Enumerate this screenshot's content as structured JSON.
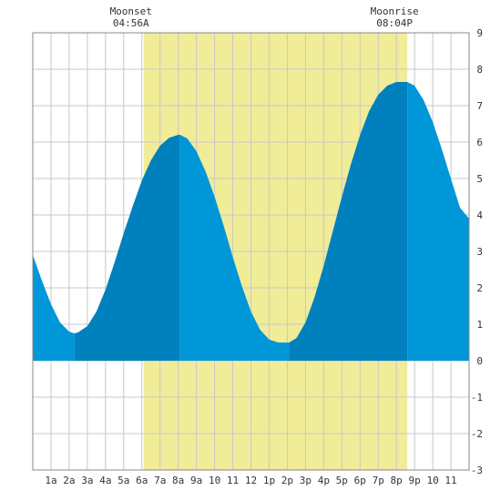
{
  "chart_data": {
    "type": "area",
    "title": "",
    "xlabel": "",
    "ylabel": "",
    "xlim": [
      0,
      24
    ],
    "ylim": [
      -3,
      9
    ],
    "grid": true,
    "x_ticks": [
      {
        "x": 1,
        "label": "1a"
      },
      {
        "x": 2,
        "label": "2a"
      },
      {
        "x": 3,
        "label": "3a"
      },
      {
        "x": 4,
        "label": "4a"
      },
      {
        "x": 5,
        "label": "5a"
      },
      {
        "x": 6,
        "label": "6a"
      },
      {
        "x": 7,
        "label": "7a"
      },
      {
        "x": 8,
        "label": "8a"
      },
      {
        "x": 9,
        "label": "9a"
      },
      {
        "x": 10,
        "label": "10"
      },
      {
        "x": 11,
        "label": "11"
      },
      {
        "x": 12,
        "label": "12"
      },
      {
        "x": 13,
        "label": "1p"
      },
      {
        "x": 14,
        "label": "2p"
      },
      {
        "x": 15,
        "label": "3p"
      },
      {
        "x": 16,
        "label": "4p"
      },
      {
        "x": 17,
        "label": "5p"
      },
      {
        "x": 18,
        "label": "6p"
      },
      {
        "x": 19,
        "label": "7p"
      },
      {
        "x": 20,
        "label": "8p"
      },
      {
        "x": 21,
        "label": "9p"
      },
      {
        "x": 22,
        "label": "10"
      },
      {
        "x": 23,
        "label": "11"
      }
    ],
    "y_ticks": [
      -3,
      -2,
      -1,
      0,
      1,
      2,
      3,
      4,
      5,
      6,
      7,
      8,
      9
    ],
    "extrema": [
      {
        "type": "low",
        "time": 2.3,
        "value": 0.75
      },
      {
        "type": "high",
        "time": 8.1,
        "value": 6.2
      },
      {
        "type": "low",
        "time": 14.1,
        "value": 0.5
      },
      {
        "type": "high",
        "time": 20.6,
        "value": 7.65
      }
    ],
    "tide_series": {
      "name": "",
      "x": [
        0,
        0.5,
        1,
        1.5,
        2,
        2.3,
        2.5,
        3,
        3.5,
        4,
        4.5,
        5,
        5.5,
        6,
        6.5,
        7,
        7.5,
        8,
        8.1,
        8.5,
        9,
        9.5,
        10,
        10.5,
        11,
        11.5,
        12,
        12.5,
        13,
        13.5,
        14,
        14.1,
        14.5,
        15,
        15.5,
        16,
        16.5,
        17,
        17.5,
        18,
        18.5,
        19,
        19.5,
        20,
        20.6,
        21,
        21.5,
        22,
        22.5,
        23,
        23.5,
        24
      ],
      "values": [
        2.9,
        2.2,
        1.55,
        1.05,
        0.8,
        0.75,
        0.78,
        0.95,
        1.35,
        1.95,
        2.7,
        3.5,
        4.25,
        4.95,
        5.5,
        5.9,
        6.12,
        6.2,
        6.2,
        6.1,
        5.75,
        5.2,
        4.5,
        3.7,
        2.85,
        2.05,
        1.35,
        0.85,
        0.58,
        0.5,
        0.5,
        0.5,
        0.62,
        1.05,
        1.75,
        2.6,
        3.55,
        4.5,
        5.4,
        6.2,
        6.85,
        7.3,
        7.55,
        7.65,
        7.65,
        7.55,
        7.15,
        6.55,
        5.8,
        5.0,
        4.2,
        3.9
      ]
    },
    "shaded_band": {
      "from": 6.1,
      "to": 20.6
    },
    "colors": {
      "tide": "#0097d9",
      "tide_dark": "#0080bd",
      "band": "#f0ec98",
      "grid": "#c8c8c8",
      "axis_text": "#333333"
    },
    "annotations": [
      {
        "label": "Moonset",
        "time_label": "04:56A",
        "x": 6.1
      },
      {
        "label": "Moonrise",
        "time_label": "08:04P",
        "x": 20.6
      }
    ]
  }
}
